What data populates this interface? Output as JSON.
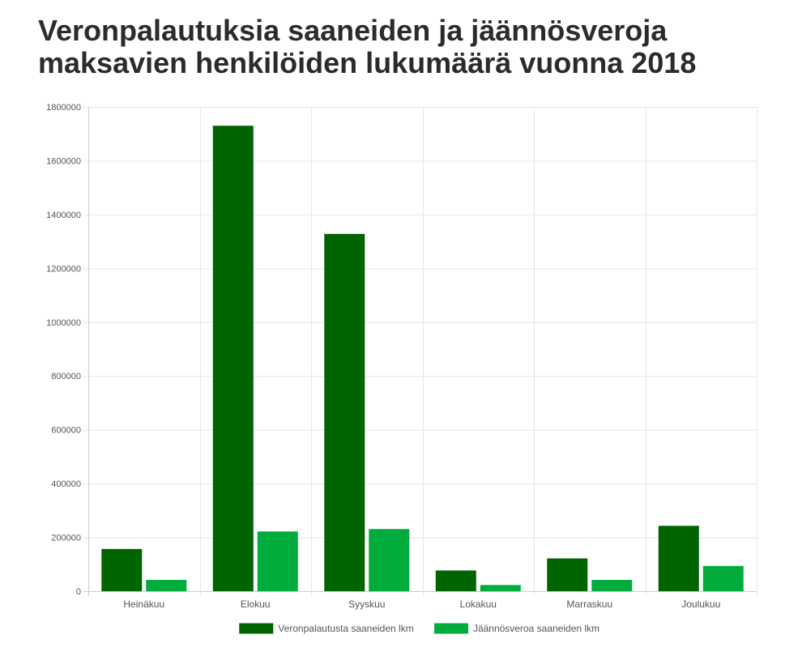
{
  "title": "Veronpalautuksia saaneiden ja jäännösveroja maksavien henkilöiden lukumäärä vuonna 2018",
  "chart_data": {
    "type": "bar",
    "title": "Veronpalautuksia saaneiden ja jäännösveroja maksavien henkilöiden lukumäärä vuonna 2018",
    "categories": [
      "Heinäkuu",
      "Elokuu",
      "Syyskuu",
      "Lokakuu",
      "Marraskuu",
      "Joulukuu"
    ],
    "series": [
      {
        "name": "Veronpalautusta saaneiden lkm",
        "color": "#006400",
        "values": [
          157000,
          1730000,
          1328000,
          77000,
          122000,
          243000
        ]
      },
      {
        "name": "Jäännösveroa saaneiden lkm",
        "color": "#00ad3c",
        "values": [
          42000,
          222000,
          231000,
          23000,
          42000,
          94000
        ]
      }
    ],
    "ylim": [
      0,
      1800000
    ],
    "yticks": [
      "0",
      "200000",
      "400000",
      "600000",
      "800000",
      "1000000",
      "1200000",
      "1400000",
      "1600000",
      "1800000"
    ],
    "grid": true,
    "legend": "bottom"
  }
}
